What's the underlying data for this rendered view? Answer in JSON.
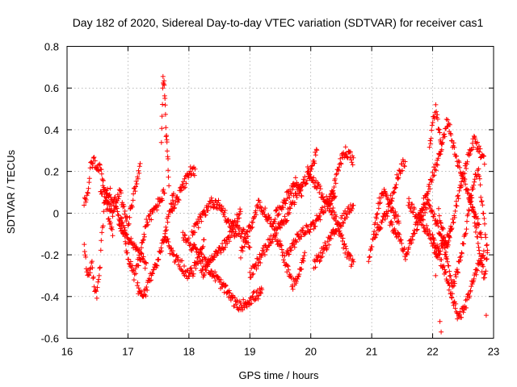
{
  "chart_data": {
    "type": "scatter",
    "title": "Day 182 of 2020, Sidereal Day-to-day VTEC variation (SDTVAR) for receiver cas1",
    "xlabel": "GPS time / hours",
    "ylabel": "SDTVAR / TECUs",
    "xlim": [
      16,
      23
    ],
    "ylim": [
      -0.6,
      0.8
    ],
    "x_ticks": [
      "16",
      "17",
      "18",
      "19",
      "20",
      "21",
      "22",
      "23"
    ],
    "y_ticks": [
      "-0.6",
      "-0.4",
      "-0.2",
      "0",
      "0.2",
      "0.4",
      "0.6",
      "0.8"
    ],
    "grid": true,
    "marker": "+",
    "series_color": "#ff0000",
    "gap": [
      20.7,
      20.9
    ],
    "tracks": [
      {
        "name": "track-1",
        "t0": 16.28,
        "t1": 16.7,
        "values": [
          -0.15,
          -0.28,
          -0.28,
          -0.25,
          -0.35,
          -0.39,
          -0.3,
          -0.1,
          0.05,
          0.1,
          0.05
        ]
      },
      {
        "name": "track-2",
        "t0": 16.28,
        "t1": 16.75,
        "values": [
          0.05,
          0.08,
          0.22,
          0.25,
          0.2,
          0.22,
          0.15,
          0.05,
          -0.05,
          -0.1
        ]
      },
      {
        "name": "track-3",
        "t0": 16.55,
        "t1": 17.2,
        "values": [
          0.12,
          0.1,
          0.05,
          0.0,
          0.05,
          0.1,
          0.0,
          -0.05,
          0.05,
          0.15,
          0.22
        ]
      },
      {
        "name": "track-4",
        "t0": 16.7,
        "t1": 17.6,
        "values": [
          0.1,
          0.05,
          -0.05,
          -0.2,
          -0.3,
          -0.2,
          -0.05,
          0.0,
          0.05,
          0.1
        ]
      },
      {
        "name": "track-5",
        "t0": 16.85,
        "t1": 17.3,
        "values": [
          -0.05,
          -0.1,
          -0.15,
          -0.2,
          -0.25
        ]
      },
      {
        "name": "track-6",
        "t0": 17.15,
        "t1": 17.75,
        "values": [
          -0.35,
          -0.4,
          -0.38,
          -0.3,
          -0.25,
          -0.2,
          -0.1,
          0.0,
          0.1
        ]
      },
      {
        "name": "track-7",
        "t0": 17.55,
        "t1": 17.67,
        "values": [
          0.35,
          0.65,
          0.6,
          0.4,
          0.3,
          0.15
        ]
      },
      {
        "name": "track-8",
        "t0": 17.6,
        "t1": 18.25,
        "values": [
          -0.1,
          -0.18,
          -0.22,
          -0.25,
          -0.3,
          -0.28,
          -0.22,
          -0.12
        ]
      },
      {
        "name": "track-9",
        "t0": 17.7,
        "t1": 18.1,
        "values": [
          0.0,
          0.05,
          0.1,
          0.15,
          0.2,
          0.2
        ]
      },
      {
        "name": "track-10",
        "t0": 17.9,
        "t1": 19.2,
        "values": [
          -0.1,
          -0.15,
          -0.2,
          -0.25,
          -0.3,
          -0.35,
          -0.4,
          -0.45,
          -0.43,
          -0.4,
          -0.38
        ]
      },
      {
        "name": "track-11",
        "t0": 18.05,
        "t1": 18.85,
        "values": [
          -0.1,
          -0.05,
          0.0,
          0.05,
          0.05,
          0.02,
          -0.05,
          -0.05,
          0.0
        ]
      },
      {
        "name": "track-12",
        "t0": 18.2,
        "t1": 19.0,
        "values": [
          -0.3,
          -0.25,
          -0.2,
          -0.18,
          -0.15,
          -0.1,
          -0.08,
          -0.1,
          -0.15
        ]
      },
      {
        "name": "track-13",
        "t0": 18.85,
        "t1": 19.85,
        "values": [
          -0.2,
          -0.1,
          -0.05,
          0.05,
          0.0,
          -0.05,
          0.0,
          0.05,
          0.1,
          0.15,
          0.1
        ]
      },
      {
        "name": "track-14",
        "t0": 19.0,
        "t1": 19.9,
        "values": [
          -0.3,
          -0.25,
          -0.2,
          -0.15,
          -0.1,
          -0.15,
          -0.25,
          -0.35,
          -0.3,
          -0.2
        ]
      },
      {
        "name": "track-15",
        "t0": 19.4,
        "t1": 20.1,
        "values": [
          -0.1,
          -0.05,
          -0.02,
          0.05,
          0.1,
          0.15,
          0.2,
          0.3
        ]
      },
      {
        "name": "track-16",
        "t0": 19.6,
        "t1": 20.4,
        "values": [
          -0.2,
          -0.15,
          -0.1,
          -0.08,
          -0.05,
          0.0,
          0.05,
          0.1
        ]
      },
      {
        "name": "track-17",
        "t0": 19.95,
        "t1": 20.7,
        "values": [
          0.2,
          0.15,
          0.1,
          0.05,
          0.0,
          -0.1,
          -0.2,
          -0.25
        ]
      },
      {
        "name": "track-18",
        "t0": 20.05,
        "t1": 20.7,
        "values": [
          -0.25,
          -0.2,
          -0.15,
          -0.1,
          -0.05,
          0.0,
          0.05
        ]
      },
      {
        "name": "track-19",
        "t0": 20.3,
        "t1": 20.7,
        "values": [
          0.05,
          0.1,
          0.2,
          0.25,
          0.3,
          0.28,
          0.25
        ]
      },
      {
        "name": "track-20",
        "t0": 20.95,
        "t1": 21.45,
        "values": [
          -0.25,
          -0.1,
          0.05,
          0.1,
          0.05,
          0.0,
          -0.05
        ]
      },
      {
        "name": "track-21",
        "t0": 21.05,
        "t1": 21.55,
        "values": [
          -0.1,
          -0.05,
          0.0,
          0.1,
          0.2,
          0.25
        ]
      },
      {
        "name": "track-22",
        "t0": 21.3,
        "t1": 22.2,
        "values": [
          -0.05,
          -0.1,
          -0.2,
          -0.1,
          0.0,
          0.05,
          -0.05,
          -0.15
        ]
      },
      {
        "name": "track-23",
        "t0": 21.6,
        "t1": 22.3,
        "values": [
          0.05,
          0.0,
          -0.05,
          -0.1,
          -0.2,
          -0.15,
          -0.1
        ]
      },
      {
        "name": "track-24",
        "t0": 21.8,
        "t1": 22.8,
        "values": [
          0.0,
          0.1,
          0.2,
          0.3,
          0.45,
          0.3,
          0.2,
          0.1,
          0.0,
          -0.1
        ]
      },
      {
        "name": "track-25",
        "t0": 21.95,
        "t1": 22.15,
        "values": [
          0.3,
          0.45,
          0.5,
          0.4,
          0.3
        ]
      },
      {
        "name": "track-26",
        "t0": 22.0,
        "t1": 22.85,
        "values": [
          -0.1,
          -0.2,
          -0.3,
          -0.4,
          -0.5,
          -0.45,
          -0.35,
          -0.25,
          -0.2
        ]
      },
      {
        "name": "track-27",
        "t0": 22.1,
        "t1": 22.9,
        "values": [
          0.0,
          -0.1,
          -0.25,
          -0.35,
          -0.3,
          -0.2,
          -0.1,
          0.05,
          0.15,
          0.2,
          0.0,
          -0.2
        ]
      },
      {
        "name": "track-28",
        "t0": 22.2,
        "t1": 22.85,
        "values": [
          -0.2,
          -0.1,
          0.0,
          0.1,
          0.2,
          0.3,
          0.35,
          0.3,
          0.25
        ]
      },
      {
        "name": "track-29",
        "t0": 22.6,
        "t1": 22.9,
        "values": [
          0.1,
          0.05,
          -0.05,
          -0.15,
          -0.25,
          -0.3,
          -0.2
        ]
      }
    ],
    "isolated_points": [
      {
        "x": 22.12,
        "y": -0.52
      },
      {
        "x": 22.14,
        "y": -0.57
      },
      {
        "x": 22.88,
        "y": -0.49
      },
      {
        "x": 22.05,
        "y": -0.3
      }
    ]
  }
}
